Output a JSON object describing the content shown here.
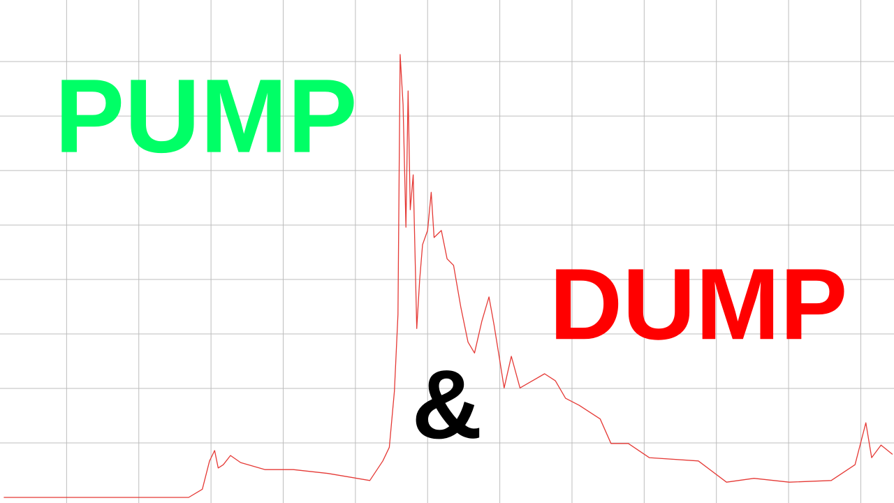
{
  "chart_data": {
    "type": "line",
    "color": "#e53935",
    "grid": true,
    "grid_color": "#bdbdbd",
    "xlim": [
      0,
      12.46
    ],
    "ylim": [
      0,
      9.13
    ],
    "xticks": [
      1,
      2,
      3,
      4,
      5,
      6,
      7,
      8,
      9,
      10,
      11,
      12
    ],
    "yticks": [
      1,
      2,
      3,
      4,
      5,
      6,
      7,
      8
    ],
    "x": [
      0.13,
      2.69,
      2.88,
      2.98,
      3.05,
      3.1,
      3.17,
      3.27,
      3.41,
      3.75,
      4.14,
      4.62,
      5.2,
      5.38,
      5.47,
      5.54,
      5.59,
      5.62,
      5.66,
      5.7,
      5.73,
      5.76,
      5.8,
      5.85,
      5.89,
      5.93,
      6.0,
      6.05,
      6.09,
      6.19,
      6.27,
      6.36,
      6.46,
      6.56,
      6.65,
      6.75,
      6.85,
      6.92,
      6.99,
      7.06,
      7.16,
      7.28,
      7.62,
      7.77,
      7.91,
      8.1,
      8.39,
      8.54,
      8.78,
      9.07,
      9.75,
      10.14,
      10.52,
      11.01,
      11.59,
      11.92,
      12.07,
      12.15,
      12.28,
      12.44
    ],
    "values": [
      0,
      0,
      0.15,
      0.67,
      0.86,
      0.54,
      0.6,
      0.77,
      0.64,
      0.51,
      0.51,
      0.44,
      0.31,
      0.67,
      0.92,
      1.95,
      3.36,
      8.13,
      7.21,
      4.96,
      7.46,
      5.28,
      5.92,
      3.1,
      4.0,
      4.64,
      4.9,
      5.6,
      4.77,
      4.9,
      4.38,
      4.26,
      3.49,
      2.85,
      2.65,
      3.23,
      3.68,
      3.17,
      2.59,
      2.01,
      2.59,
      2.01,
      2.27,
      2.14,
      1.82,
      1.69,
      1.44,
      0.99,
      0.99,
      0.73,
      0.67,
      0.28,
      0.35,
      0.28,
      0.31,
      0.6,
      1.37,
      0.73,
      0.96,
      0.79
    ],
    "annotations": [
      {
        "text": "PUMP",
        "color": "#00ff66"
      },
      {
        "text": "&",
        "color": "#000000"
      },
      {
        "text": "DUMP",
        "color": "#ff0000"
      }
    ]
  }
}
